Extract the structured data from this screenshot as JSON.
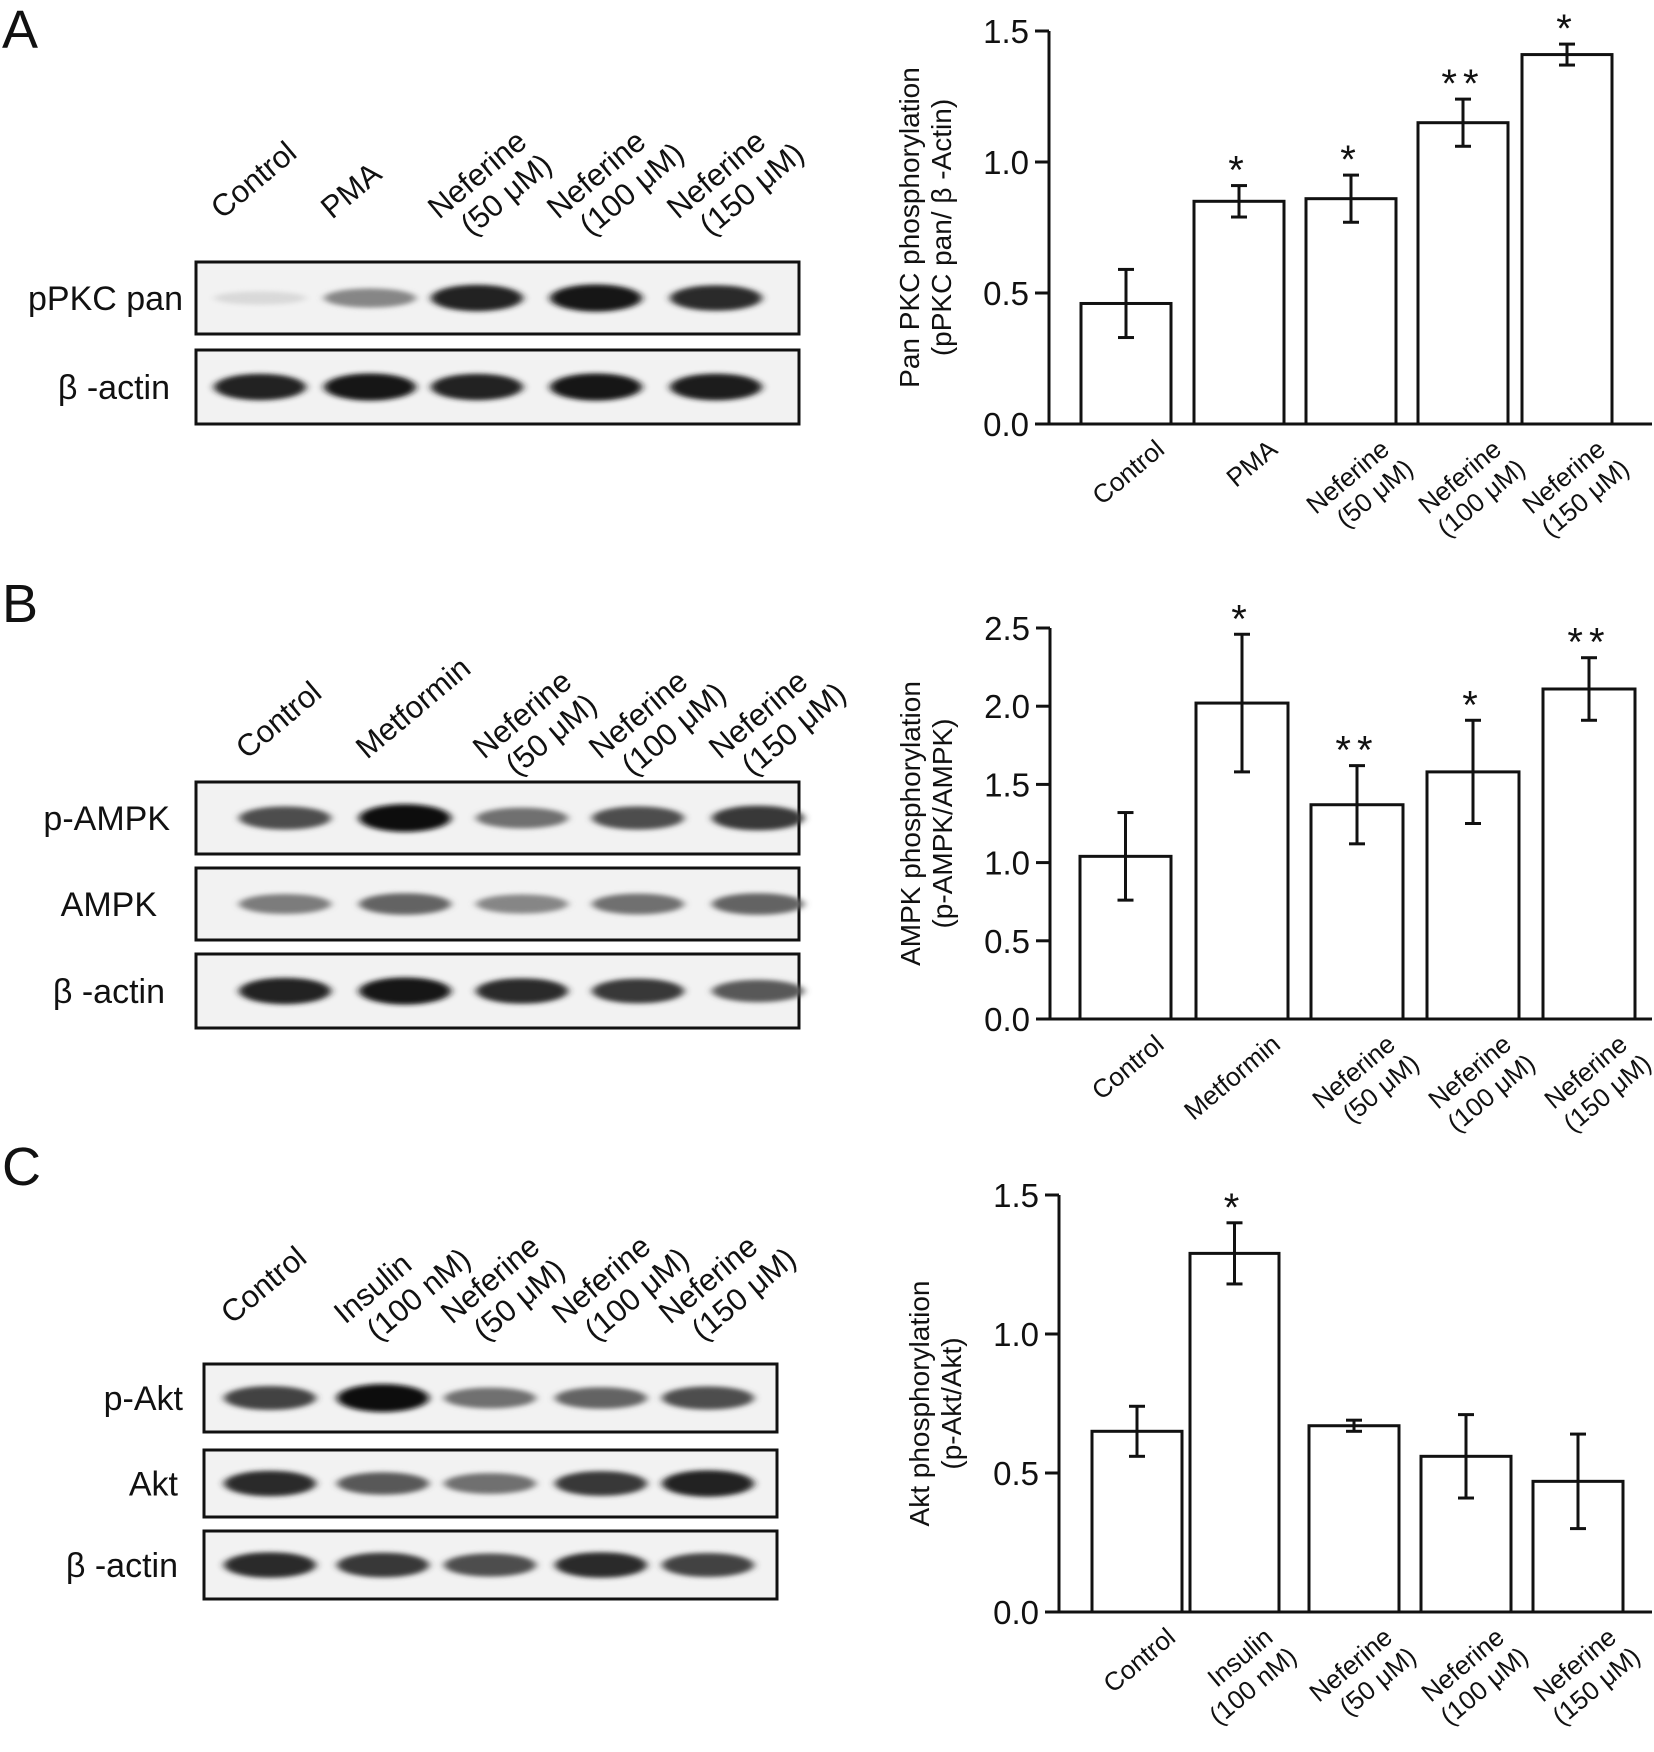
{
  "panels": [
    {
      "letter": "A",
      "blot": {
        "lanes": [
          [
            "Control"
          ],
          [
            "PMA"
          ],
          [
            "Neferine",
            "(50 μM)"
          ],
          [
            "Neferine",
            "(100 μM)"
          ],
          [
            "Neferine",
            "(150 μM)"
          ]
        ],
        "rows": [
          {
            "label": "pPKC pan",
            "intensity": [
              0.08,
              0.45,
              0.9,
              0.95,
              0.85
            ]
          },
          {
            "label": "β -actin",
            "intensity": [
              0.9,
              0.95,
              0.9,
              0.95,
              0.92
            ]
          }
        ]
      },
      "chart_data": {
        "type": "bar",
        "categories": [
          [
            "Control"
          ],
          [
            "PMA"
          ],
          [
            "Neferine",
            "(50 μM)"
          ],
          [
            "Neferine",
            "(100 μM)"
          ],
          [
            "Neferine",
            "(150 μM)"
          ]
        ],
        "values": [
          0.46,
          0.85,
          0.86,
          1.15,
          1.41
        ],
        "errors": [
          0.13,
          0.06,
          0.09,
          0.09,
          0.04
        ],
        "significance": [
          "",
          "*",
          "*",
          "**",
          "*"
        ],
        "ylabel_lines": [
          "Pan PKC phosphorylation",
          "(pPKC pan/ β -Actin)"
        ],
        "ylim": [
          0,
          1.5
        ],
        "yticks": [
          "0.0",
          "0.5",
          "1.0",
          "1.5"
        ]
      }
    },
    {
      "letter": "B",
      "blot": {
        "lanes": [
          [
            "Control"
          ],
          [
            "Metformin"
          ],
          [
            "Neferine",
            "(50 μM)"
          ],
          [
            "Neferine",
            "(100 μM)"
          ],
          [
            "Neferine",
            "(150 μM)"
          ]
        ],
        "rows": [
          {
            "label": "p-AMPK",
            "intensity": [
              0.7,
              0.98,
              0.55,
              0.7,
              0.8
            ]
          },
          {
            "label": "AMPK",
            "intensity": [
              0.5,
              0.6,
              0.45,
              0.55,
              0.6
            ]
          },
          {
            "label": "β -actin",
            "intensity": [
              0.9,
              0.95,
              0.85,
              0.8,
              0.65
            ]
          }
        ]
      },
      "chart_data": {
        "type": "bar",
        "categories": [
          [
            "Control"
          ],
          [
            "Metformin"
          ],
          [
            "Neferine",
            "(50 μM)"
          ],
          [
            "Neferine",
            "(100 μM)"
          ],
          [
            "Neferine",
            "(150 μM)"
          ]
        ],
        "values": [
          1.04,
          2.02,
          1.37,
          1.58,
          2.11
        ],
        "errors": [
          0.28,
          0.44,
          0.25,
          0.33,
          0.2
        ],
        "significance": [
          "",
          "*",
          "**",
          "*",
          "**"
        ],
        "ylabel_lines": [
          "AMPK phosphorylation",
          "(p-AMPK/AMPK)"
        ],
        "ylim": [
          0,
          2.5
        ],
        "yticks": [
          "0.0",
          "0.5",
          "1.0",
          "1.5",
          "2.0",
          "2.5"
        ]
      }
    },
    {
      "letter": "C",
      "blot": {
        "lanes": [
          [
            "Control"
          ],
          [
            "Insulin",
            "(100 nM)"
          ],
          [
            "Neferine",
            "(50 μM)"
          ],
          [
            "Neferine",
            "(100 μM)"
          ],
          [
            "Neferine",
            "(150 μM)"
          ]
        ],
        "rows": [
          {
            "label": "p-Akt",
            "intensity": [
              0.75,
              1.0,
              0.55,
              0.6,
              0.7
            ]
          },
          {
            "label": "Akt",
            "intensity": [
              0.85,
              0.65,
              0.55,
              0.8,
              0.9
            ]
          },
          {
            "label": "β -actin",
            "intensity": [
              0.85,
              0.8,
              0.7,
              0.85,
              0.75
            ]
          }
        ]
      },
      "chart_data": {
        "type": "bar",
        "categories": [
          [
            "Control"
          ],
          [
            "Insulin",
            "(100 nM)"
          ],
          [
            "Neferine",
            "(50 μM)"
          ],
          [
            "Neferine",
            "(100 μM)"
          ],
          [
            "Neferine",
            "(150 μM)"
          ]
        ],
        "values": [
          0.65,
          1.29,
          0.67,
          0.56,
          0.47
        ],
        "errors": [
          0.09,
          0.11,
          0.02,
          0.15,
          0.17
        ],
        "significance": [
          "",
          "*",
          "",
          "",
          ""
        ],
        "ylabel_lines": [
          "Akt phosphorylation",
          "(p-Akt/Akt)"
        ],
        "ylim": [
          0,
          1.5
        ],
        "yticks": [
          "0.0",
          "0.5",
          "1.0",
          "1.5"
        ]
      }
    }
  ]
}
